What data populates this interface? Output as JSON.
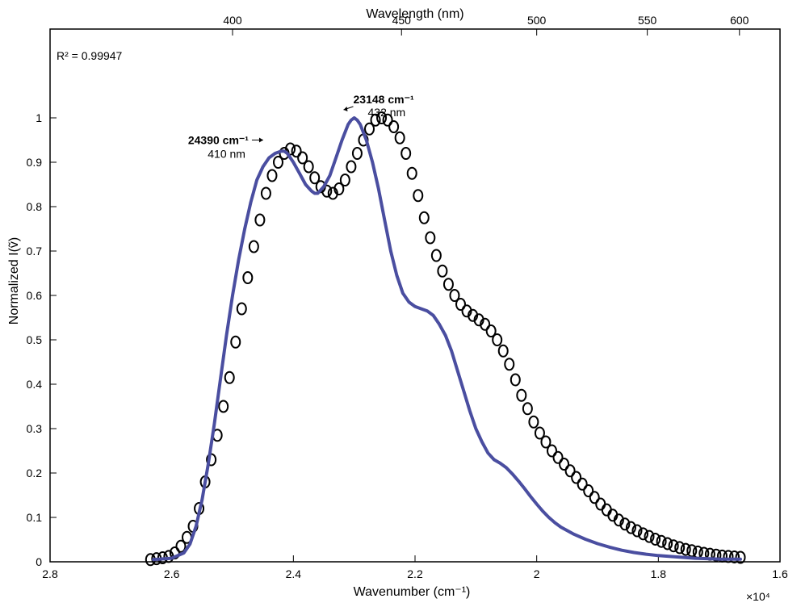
{
  "chart_data": {
    "type": "scatter",
    "xlabel": "Wavenumber (cm⁻¹)",
    "x_multiplier_label": "×10⁴",
    "top_xlabel": "Wavelength (nm)",
    "ylabel": "Normalized I(ṽ)",
    "r_squared_label": "R² = 0.99947",
    "xlim": [
      28000,
      16000
    ],
    "ylim": [
      0,
      1.2
    ],
    "x_ticks": [
      28000,
      26000,
      24000,
      22000,
      20000,
      18000,
      16000
    ],
    "x_tick_labels": [
      "2.8",
      "2.6",
      "2.4",
      "2.2",
      "2",
      "1.8",
      "1.6"
    ],
    "y_ticks": [
      0,
      0.1,
      0.2,
      0.3,
      0.4,
      0.5,
      0.6,
      0.7,
      0.8,
      0.9,
      1
    ],
    "y_tick_labels": [
      "0",
      "0.1",
      "0.2",
      "0.3",
      "0.4",
      "0.5",
      "0.6",
      "0.7",
      "0.8",
      "0.9",
      "1"
    ],
    "top_ticks_nm": [
      400,
      450,
      500,
      550,
      600
    ],
    "top_tick_labels": [
      "400",
      "450",
      "500",
      "550",
      "600"
    ],
    "series": [
      {
        "kind": "markers",
        "color": "#000000",
        "points": [
          [
            26350,
            0.005
          ],
          [
            26250,
            0.007
          ],
          [
            26150,
            0.009
          ],
          [
            26050,
            0.012
          ],
          [
            25950,
            0.02
          ],
          [
            25850,
            0.035
          ],
          [
            25750,
            0.055
          ],
          [
            25650,
            0.08
          ],
          [
            25550,
            0.12
          ],
          [
            25450,
            0.18
          ],
          [
            25350,
            0.23
          ],
          [
            25250,
            0.285
          ],
          [
            25150,
            0.35
          ],
          [
            25050,
            0.415
          ],
          [
            24950,
            0.495
          ],
          [
            24850,
            0.57
          ],
          [
            24750,
            0.64
          ],
          [
            24650,
            0.71
          ],
          [
            24550,
            0.77
          ],
          [
            24450,
            0.83
          ],
          [
            24350,
            0.87
          ],
          [
            24250,
            0.9
          ],
          [
            24150,
            0.92
          ],
          [
            24050,
            0.93
          ],
          [
            23950,
            0.925
          ],
          [
            23850,
            0.91
          ],
          [
            23750,
            0.89
          ],
          [
            23650,
            0.865
          ],
          [
            23550,
            0.845
          ],
          [
            23450,
            0.835
          ],
          [
            23350,
            0.83
          ],
          [
            23250,
            0.84
          ],
          [
            23150,
            0.86
          ],
          [
            23050,
            0.89
          ],
          [
            22950,
            0.92
          ],
          [
            22850,
            0.95
          ],
          [
            22750,
            0.975
          ],
          [
            22650,
            0.995
          ],
          [
            22550,
            1.0
          ],
          [
            22450,
            0.995
          ],
          [
            22350,
            0.98
          ],
          [
            22250,
            0.955
          ],
          [
            22150,
            0.92
          ],
          [
            22050,
            0.875
          ],
          [
            21950,
            0.825
          ],
          [
            21850,
            0.775
          ],
          [
            21750,
            0.73
          ],
          [
            21650,
            0.69
          ],
          [
            21550,
            0.655
          ],
          [
            21450,
            0.625
          ],
          [
            21350,
            0.6
          ],
          [
            21250,
            0.58
          ],
          [
            21150,
            0.565
          ],
          [
            21050,
            0.555
          ],
          [
            20950,
            0.545
          ],
          [
            20850,
            0.535
          ],
          [
            20750,
            0.52
          ],
          [
            20650,
            0.5
          ],
          [
            20550,
            0.475
          ],
          [
            20450,
            0.445
          ],
          [
            20350,
            0.41
          ],
          [
            20250,
            0.375
          ],
          [
            20150,
            0.345
          ],
          [
            20050,
            0.315
          ],
          [
            19950,
            0.29
          ],
          [
            19850,
            0.27
          ],
          [
            19750,
            0.25
          ],
          [
            19650,
            0.235
          ],
          [
            19550,
            0.22
          ],
          [
            19450,
            0.205
          ],
          [
            19350,
            0.19
          ],
          [
            19250,
            0.175
          ],
          [
            19150,
            0.16
          ],
          [
            19050,
            0.145
          ],
          [
            18950,
            0.13
          ],
          [
            18850,
            0.117
          ],
          [
            18750,
            0.105
          ],
          [
            18650,
            0.094
          ],
          [
            18550,
            0.085
          ],
          [
            18450,
            0.077
          ],
          [
            18350,
            0.07
          ],
          [
            18250,
            0.063
          ],
          [
            18150,
            0.057
          ],
          [
            18050,
            0.051
          ],
          [
            17950,
            0.046
          ],
          [
            17850,
            0.041
          ],
          [
            17750,
            0.036
          ],
          [
            17650,
            0.032
          ],
          [
            17550,
            0.028
          ],
          [
            17450,
            0.025
          ],
          [
            17350,
            0.022
          ],
          [
            17250,
            0.019
          ],
          [
            17150,
            0.017
          ],
          [
            17050,
            0.015
          ],
          [
            16950,
            0.013
          ],
          [
            16850,
            0.012
          ],
          [
            16750,
            0.011
          ],
          [
            16650,
            0.01
          ]
        ]
      },
      {
        "kind": "fit-line",
        "color": "#4a4ea0",
        "points": [
          [
            26300,
            0.005
          ],
          [
            26000,
            0.008
          ],
          [
            25800,
            0.02
          ],
          [
            25700,
            0.04
          ],
          [
            25600,
            0.08
          ],
          [
            25500,
            0.14
          ],
          [
            25400,
            0.22
          ],
          [
            25300,
            0.31
          ],
          [
            25200,
            0.41
          ],
          [
            25100,
            0.51
          ],
          [
            25000,
            0.6
          ],
          [
            24900,
            0.68
          ],
          [
            24800,
            0.75
          ],
          [
            24700,
            0.81
          ],
          [
            24600,
            0.86
          ],
          [
            24500,
            0.89
          ],
          [
            24400,
            0.91
          ],
          [
            24300,
            0.92
          ],
          [
            24200,
            0.925
          ],
          [
            24150,
            0.925
          ],
          [
            24100,
            0.92
          ],
          [
            24000,
            0.9
          ],
          [
            23900,
            0.875
          ],
          [
            23800,
            0.85
          ],
          [
            23700,
            0.835
          ],
          [
            23650,
            0.83
          ],
          [
            23600,
            0.83
          ],
          [
            23500,
            0.845
          ],
          [
            23400,
            0.87
          ],
          [
            23300,
            0.91
          ],
          [
            23200,
            0.95
          ],
          [
            23100,
            0.985
          ],
          [
            23050,
            0.995
          ],
          [
            23000,
            1.0
          ],
          [
            22950,
            0.995
          ],
          [
            22900,
            0.985
          ],
          [
            22800,
            0.95
          ],
          [
            22700,
            0.9
          ],
          [
            22600,
            0.84
          ],
          [
            22500,
            0.77
          ],
          [
            22400,
            0.7
          ],
          [
            22300,
            0.645
          ],
          [
            22200,
            0.605
          ],
          [
            22100,
            0.585
          ],
          [
            22000,
            0.575
          ],
          [
            21900,
            0.57
          ],
          [
            21800,
            0.565
          ],
          [
            21700,
            0.555
          ],
          [
            21600,
            0.535
          ],
          [
            21500,
            0.51
          ],
          [
            21400,
            0.475
          ],
          [
            21300,
            0.43
          ],
          [
            21200,
            0.385
          ],
          [
            21100,
            0.34
          ],
          [
            21000,
            0.3
          ],
          [
            20900,
            0.27
          ],
          [
            20800,
            0.245
          ],
          [
            20700,
            0.23
          ],
          [
            20600,
            0.222
          ],
          [
            20500,
            0.212
          ],
          [
            20400,
            0.198
          ],
          [
            20300,
            0.182
          ],
          [
            20200,
            0.165
          ],
          [
            20100,
            0.147
          ],
          [
            20000,
            0.13
          ],
          [
            19900,
            0.114
          ],
          [
            19800,
            0.1
          ],
          [
            19700,
            0.088
          ],
          [
            19600,
            0.078
          ],
          [
            19400,
            0.063
          ],
          [
            19200,
            0.051
          ],
          [
            19000,
            0.041
          ],
          [
            18800,
            0.033
          ],
          [
            18600,
            0.026
          ],
          [
            18400,
            0.021
          ],
          [
            18200,
            0.017
          ],
          [
            18000,
            0.014
          ],
          [
            17800,
            0.012
          ],
          [
            17600,
            0.01
          ],
          [
            17400,
            0.008
          ],
          [
            17200,
            0.007
          ],
          [
            17000,
            0.006
          ],
          [
            16800,
            0.006
          ],
          [
            16650,
            0.006
          ]
        ]
      }
    ],
    "annotations": [
      {
        "wavenumber_label": "24390 cm⁻¹",
        "wavelength_label": "410 nm",
        "x": 24390,
        "y": 0.93
      },
      {
        "wavenumber_label": "23148 cm⁻¹",
        "wavelength_label": "432 nm",
        "x": 23148,
        "y": 1.0
      }
    ]
  }
}
